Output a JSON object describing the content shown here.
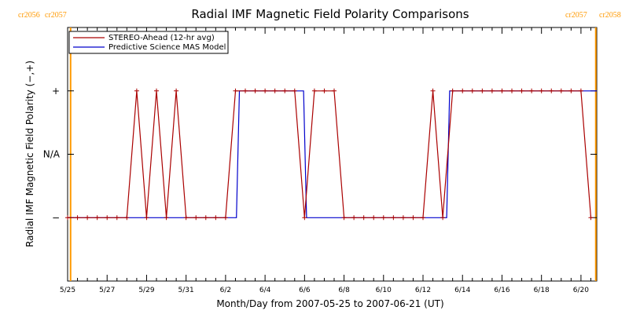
{
  "chart_data": {
    "type": "line",
    "title": "Radial IMF Magnetic Field Polarity Comparisons",
    "xlabel": "Month/Day from 2007-05-25 to 2007-06-21 (UT)",
    "ylabel": "Radial IMF Magnetic Field Polarity (−,+)",
    "x_unit": "days from 2007-05-25",
    "xlim": [
      0,
      26.8
    ],
    "ylim": [
      -2,
      2
    ],
    "yticks": [
      {
        "value": -1,
        "label": "−"
      },
      {
        "value": 0,
        "label": "N/A"
      },
      {
        "value": 1,
        "label": "+"
      }
    ],
    "xticks": [
      {
        "value": 0,
        "label": "5/25"
      },
      {
        "value": 2,
        "label": "5/27"
      },
      {
        "value": 4,
        "label": "5/29"
      },
      {
        "value": 6,
        "label": "5/31"
      },
      {
        "value": 8,
        "label": "6/2"
      },
      {
        "value": 10,
        "label": "6/4"
      },
      {
        "value": 12,
        "label": "6/6"
      },
      {
        "value": 14,
        "label": "6/8"
      },
      {
        "value": 16,
        "label": "6/10"
      },
      {
        "value": 18,
        "label": "6/12"
      },
      {
        "value": 20,
        "label": "6/14"
      },
      {
        "value": 22,
        "label": "6/16"
      },
      {
        "value": 24,
        "label": "6/18"
      },
      {
        "value": 26,
        "label": "6/20"
      }
    ],
    "carrington_markers": [
      {
        "x": 0.15,
        "left_label": "cr2056",
        "right_label": "cr2057"
      },
      {
        "x": 26.75,
        "left_label": "cr2057",
        "right_label": "cr2058"
      }
    ],
    "legend": {
      "position": "top-left"
    },
    "colors": {
      "stereo": "#aa0000",
      "model": "#0000cc",
      "carrington": "#ff9900"
    },
    "series": [
      {
        "name": "STEREO-Ahead (12-hr avg)",
        "color": "#aa0000",
        "markers": true,
        "x": [
          0,
          0.5,
          1,
          1.5,
          2,
          2.5,
          3,
          3.5,
          4,
          4.5,
          5,
          5.5,
          6,
          6.5,
          7,
          7.5,
          8,
          8.5,
          9,
          9.5,
          10,
          10.5,
          11,
          11.5,
          12,
          12.5,
          13,
          13.5,
          14,
          14.5,
          15,
          15.5,
          16,
          16.5,
          17,
          17.5,
          18,
          18.5,
          19,
          19.5,
          20,
          20.5,
          21,
          21.5,
          22,
          22.5,
          23,
          23.5,
          24,
          24.5,
          25,
          25.5,
          26,
          26.5
        ],
        "values": [
          -1,
          -1,
          -1,
          -1,
          -1,
          -1,
          -1,
          1,
          -1,
          1,
          -1,
          1,
          -1,
          -1,
          -1,
          -1,
          -1,
          1,
          1,
          1,
          1,
          1,
          1,
          1,
          -1,
          1,
          1,
          1,
          -1,
          -1,
          -1,
          -1,
          -1,
          -1,
          -1,
          -1,
          -1,
          1,
          -1,
          1,
          1,
          1,
          1,
          1,
          1,
          1,
          1,
          1,
          1,
          1,
          1,
          1,
          1,
          -1
        ]
      },
      {
        "name": "Predictive Science MAS Model",
        "color": "#0000cc",
        "markers": false,
        "x": [
          0,
          8.55,
          8.7,
          11.95,
          12.1,
          19.2,
          19.35,
          26.8
        ],
        "values": [
          -1,
          -1,
          1,
          1,
          -1,
          -1,
          1,
          1
        ]
      }
    ]
  }
}
